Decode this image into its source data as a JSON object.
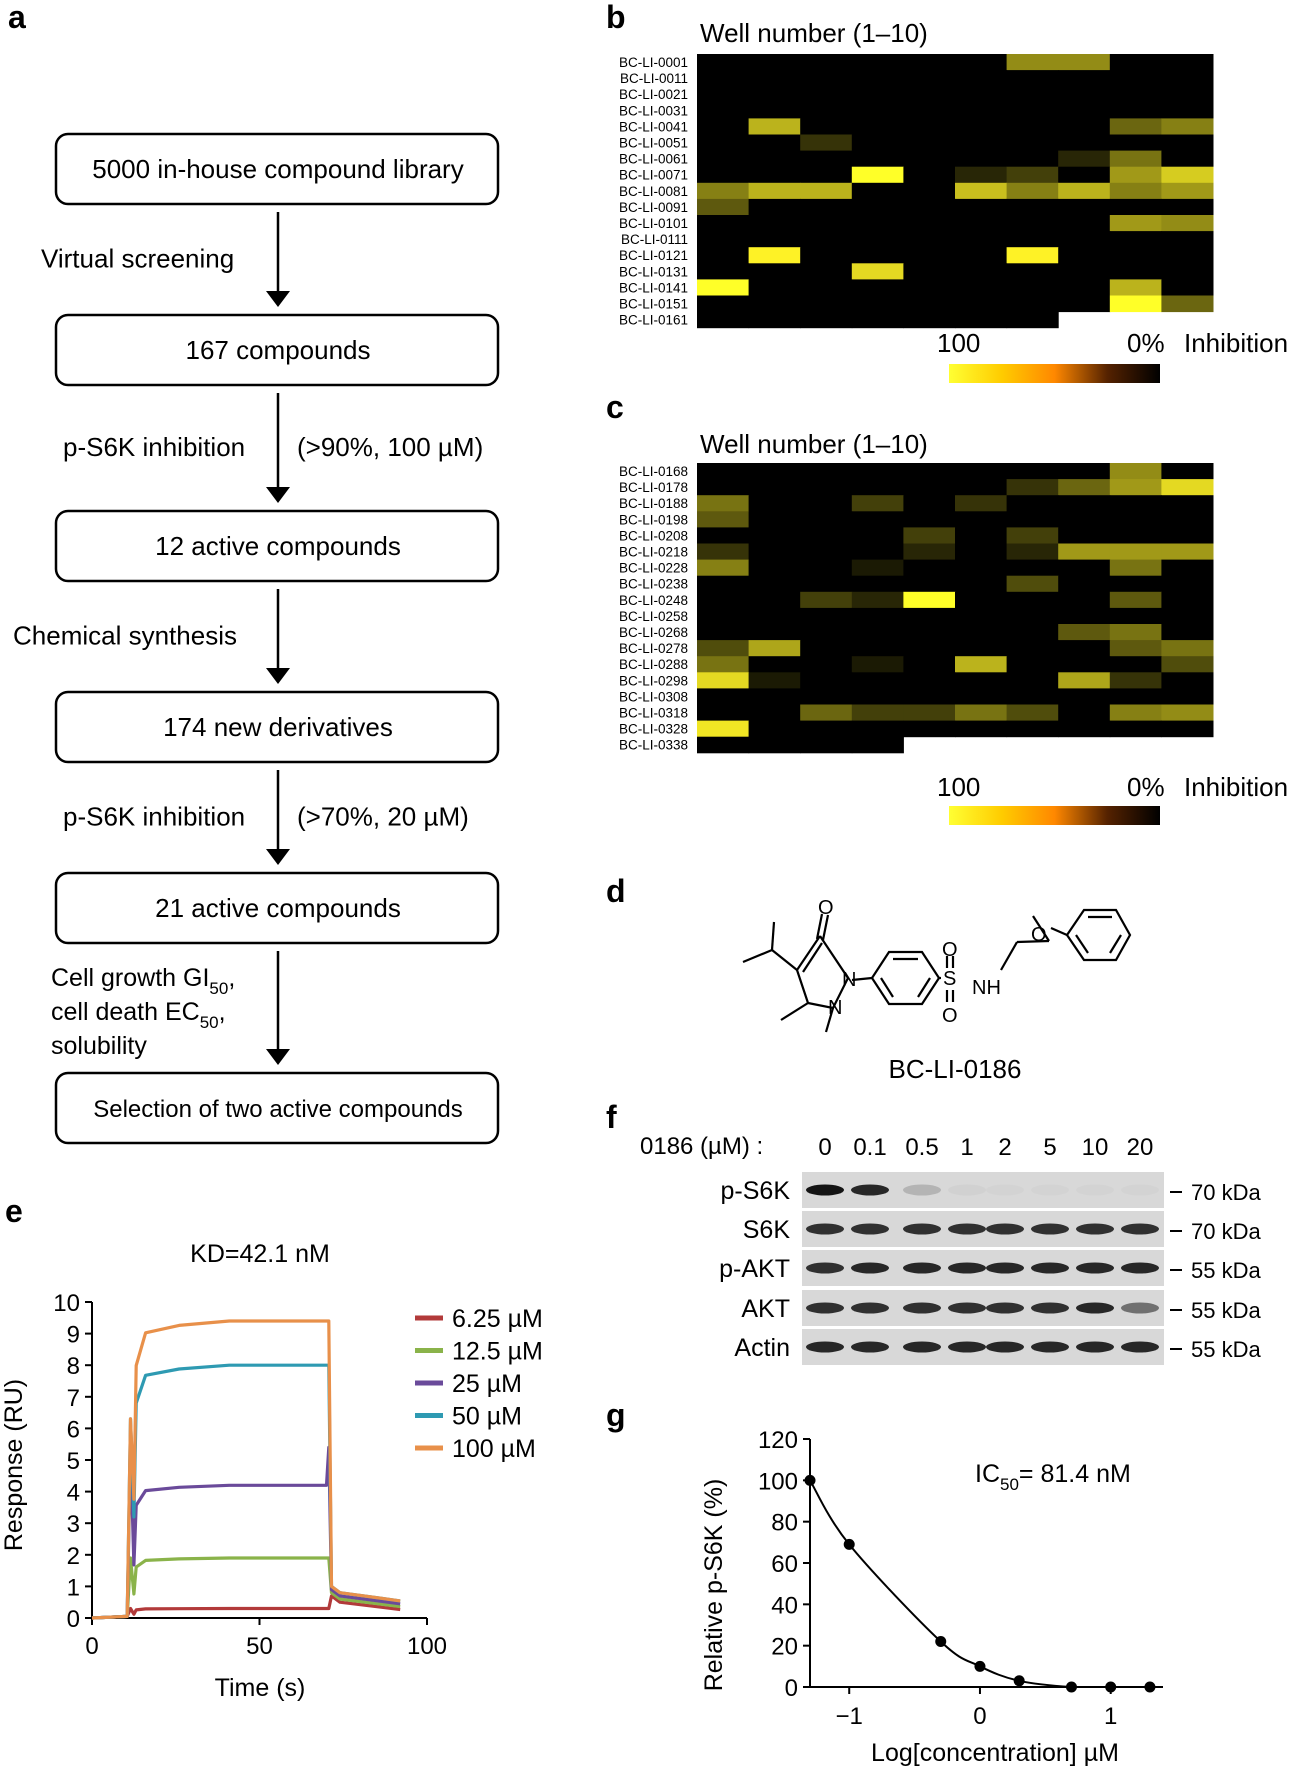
{
  "panels": {
    "a": {
      "label": "a",
      "steps": [
        "5000 in-house compound library",
        "167 compounds",
        "12 active compounds",
        "174 new derivatives",
        "21 active compounds",
        "Selection of two active compounds"
      ],
      "arrows": [
        {
          "left": "Virtual screening",
          "right": ""
        },
        {
          "left": "p-S6K inhibition",
          "right": "(>90%, 100 µM)"
        },
        {
          "left": "Chemical synthesis",
          "right": ""
        },
        {
          "left": "p-S6K inhibition",
          "right": "(>70%, 20 µM)"
        },
        {
          "left": "",
          "right": ""
        }
      ],
      "criteria": {
        "line1": "Cell growth GI",
        "line1_sub": "50",
        "line1_end": ",",
        "line2": "cell death EC",
        "line2_sub": "50",
        "line2_end": ",",
        "line3": "solubility"
      }
    },
    "b": {
      "label": "b",
      "title": "Well number (1–10)",
      "rows": [
        "BC-LI-0001",
        "BC-LI-0011",
        "BC-LI-0021",
        "BC-LI-0031",
        "BC-LI-0041",
        "BC-LI-0051",
        "BC-LI-0061",
        "BC-LI-0071",
        "BC-LI-0081",
        "BC-LI-0091",
        "BC-LI-0101",
        "BC-LI-0111",
        "BC-LI-0121",
        "BC-LI-0131",
        "BC-LI-0141",
        "BC-LI-0151",
        "BC-LI-0161"
      ],
      "matrix": [
        [
          0,
          0,
          0,
          0,
          0,
          0,
          55,
          55,
          0,
          0
        ],
        [
          0,
          0,
          0,
          0,
          0,
          0,
          0,
          0,
          0,
          0
        ],
        [
          0,
          0,
          0,
          0,
          0,
          0,
          0,
          0,
          0,
          0
        ],
        [
          0,
          0,
          0,
          0,
          0,
          0,
          0,
          0,
          0,
          0
        ],
        [
          0,
          70,
          0,
          0,
          0,
          0,
          0,
          0,
          40,
          50
        ],
        [
          0,
          0,
          20,
          0,
          0,
          0,
          0,
          0,
          0,
          0
        ],
        [
          0,
          0,
          0,
          0,
          0,
          0,
          0,
          15,
          45,
          0
        ],
        [
          0,
          0,
          0,
          100,
          0,
          15,
          25,
          0,
          60,
          80
        ],
        [
          50,
          70,
          70,
          0,
          0,
          75,
          50,
          70,
          50,
          60
        ],
        [
          35,
          0,
          0,
          0,
          0,
          0,
          0,
          0,
          0,
          0
        ],
        [
          0,
          0,
          0,
          0,
          0,
          0,
          0,
          0,
          60,
          55
        ],
        [
          0,
          0,
          0,
          0,
          0,
          0,
          0,
          0,
          0,
          0
        ],
        [
          0,
          95,
          0,
          0,
          0,
          0,
          95,
          0,
          0,
          0
        ],
        [
          0,
          0,
          0,
          85,
          0,
          0,
          0,
          0,
          0,
          0
        ],
        [
          100,
          0,
          0,
          0,
          0,
          0,
          0,
          0,
          70,
          0
        ],
        [
          0,
          0,
          0,
          0,
          0,
          0,
          0,
          0,
          100,
          40
        ],
        [
          0,
          0,
          0,
          0,
          0,
          0,
          0,
          null,
          null,
          null
        ]
      ],
      "scale_left": "100",
      "scale_right": "0%",
      "scale_label": "Inhibition"
    },
    "c": {
      "label": "c",
      "title": "Well number (1–10)",
      "rows": [
        "BC-LI-0168",
        "BC-LI-0178",
        "BC-LI-0188",
        "BC-LI-0198",
        "BC-LI-0208",
        "BC-LI-0218",
        "BC-LI-0228",
        "BC-LI-0238",
        "BC-LI-0248",
        "BC-LI-0258",
        "BC-LI-0268",
        "BC-LI-0278",
        "BC-LI-0288",
        "BC-LI-0298",
        "BC-LI-0308",
        "BC-LI-0318",
        "BC-LI-0328",
        "BC-LI-0338"
      ],
      "matrix": [
        [
          0,
          0,
          0,
          0,
          0,
          0,
          0,
          0,
          55,
          0
        ],
        [
          0,
          0,
          0,
          0,
          0,
          0,
          20,
          40,
          60,
          85
        ],
        [
          45,
          0,
          0,
          25,
          0,
          20,
          0,
          0,
          0,
          0
        ],
        [
          35,
          0,
          0,
          0,
          0,
          0,
          0,
          0,
          0,
          0
        ],
        [
          0,
          0,
          0,
          0,
          25,
          0,
          25,
          0,
          0,
          0
        ],
        [
          20,
          0,
          0,
          0,
          15,
          0,
          15,
          60,
          60,
          60
        ],
        [
          50,
          0,
          0,
          10,
          0,
          0,
          0,
          0,
          45,
          0
        ],
        [
          0,
          0,
          0,
          0,
          0,
          0,
          30,
          0,
          0,
          0
        ],
        [
          0,
          0,
          25,
          15,
          100,
          0,
          0,
          0,
          35,
          0
        ],
        [
          0,
          0,
          0,
          0,
          0,
          0,
          0,
          0,
          0,
          0
        ],
        [
          0,
          0,
          0,
          0,
          0,
          0,
          0,
          35,
          45,
          0
        ],
        [
          30,
          65,
          0,
          0,
          0,
          0,
          0,
          0,
          35,
          45
        ],
        [
          45,
          0,
          0,
          10,
          0,
          70,
          0,
          0,
          0,
          30
        ],
        [
          85,
          10,
          0,
          0,
          0,
          0,
          0,
          65,
          20,
          0
        ],
        [
          0,
          0,
          0,
          0,
          0,
          0,
          0,
          0,
          0,
          0
        ],
        [
          0,
          0,
          40,
          25,
          25,
          45,
          30,
          0,
          50,
          55
        ],
        [
          90,
          0,
          0,
          0,
          0,
          0,
          0,
          0,
          0,
          0
        ],
        [
          0,
          0,
          0,
          0,
          null,
          null,
          null,
          null,
          null,
          null
        ]
      ],
      "scale_left": "100",
      "scale_right": "0%",
      "scale_label": "Inhibition"
    },
    "d": {
      "label": "d",
      "compound": "BC-LI-0186",
      "atoms": {
        "O": "O",
        "N": "N",
        "S": "S",
        "NH": "NH"
      }
    },
    "e": {
      "label": "e",
      "title": "KD=42.1 nM",
      "xlabel": "Time (s)",
      "ylabel": "Response (RU)"
    },
    "f": {
      "label": "f",
      "dose_label": "0186 (µM) :",
      "doses": [
        "0",
        "0.1",
        "0.5",
        "1",
        "2",
        "5",
        "10",
        "20"
      ],
      "bands": [
        {
          "name": "p-S6K",
          "mw": "70 kDa",
          "intensity": [
            0.95,
            0.85,
            0.3,
            0.06,
            0.02,
            0.02,
            0.02,
            0.02
          ]
        },
        {
          "name": "S6K",
          "mw": "70 kDa",
          "intensity": [
            0.8,
            0.8,
            0.8,
            0.8,
            0.8,
            0.8,
            0.8,
            0.8
          ]
        },
        {
          "name": "p-AKT",
          "mw": "55 kDa",
          "intensity": [
            0.8,
            0.85,
            0.85,
            0.85,
            0.85,
            0.85,
            0.85,
            0.85
          ]
        },
        {
          "name": "AKT",
          "mw": "55 kDa",
          "intensity": [
            0.8,
            0.8,
            0.8,
            0.8,
            0.8,
            0.8,
            0.85,
            0.6
          ]
        },
        {
          "name": "Actin",
          "mw": "55 kDa",
          "intensity": [
            0.85,
            0.85,
            0.85,
            0.85,
            0.85,
            0.85,
            0.85,
            0.85
          ]
        }
      ]
    },
    "g": {
      "label": "g",
      "annotation": "IC",
      "annotation_sub": "50",
      "annotation_end": "= 81.4 nM",
      "xlabel": "Log[concentration] µM",
      "ylabel": "Relative p-S6K (%)"
    }
  },
  "chart_data": [
    {
      "type": "line",
      "panel": "e",
      "title": "KD=42.1 nM",
      "xlabel": "Time (s)",
      "ylabel": "Response (RU)",
      "xlim": [
        0,
        100
      ],
      "ylim": [
        0,
        10
      ],
      "xticks": [
        0,
        50,
        100
      ],
      "yticks": [
        0,
        1,
        2,
        3,
        4,
        5,
        6,
        7,
        8,
        9,
        10
      ],
      "legend_placement": "top-right",
      "series": [
        {
          "name": "6.25 µM",
          "color": "#b23a3a",
          "plateau": 0.3,
          "spike": 0.3,
          "tail": 0.3
        },
        {
          "name": "12.5 µM",
          "color": "#8ab34a",
          "plateau": 1.9,
          "spike": 1.9,
          "tail": 0.4
        },
        {
          "name": "25 µM",
          "color": "#6a4a9a",
          "plateau": 4.2,
          "spike": 5.4,
          "tail": 0.5
        },
        {
          "name": "50 µM",
          "color": "#2e9ab2",
          "plateau": 8.0,
          "spike": 6.3,
          "tail": 0.6
        },
        {
          "name": "100 µM",
          "color": "#e8904a",
          "plateau": 9.4,
          "spike": 6.3,
          "tail": 0.6
        }
      ],
      "t_on": 11,
      "t_off": 71,
      "t_end": 92
    },
    {
      "type": "scatter",
      "panel": "g",
      "xlabel": "Log[concentration] µM",
      "ylabel": "Relative p-S6K (%)",
      "xlim": [
        -1.3,
        1.4
      ],
      "ylim": [
        0,
        120
      ],
      "xticks": [
        -1,
        0,
        1
      ],
      "xtick_labels": [
        "−1",
        "0",
        "1"
      ],
      "yticks": [
        0,
        20,
        40,
        60,
        80,
        100,
        120
      ],
      "x": [
        -1.3,
        -1.0,
        -0.3,
        0.0,
        0.3,
        0.7,
        1.0,
        1.3
      ],
      "y": [
        100,
        69,
        22,
        10,
        3,
        0,
        0,
        0
      ],
      "fit": "sigmoidal",
      "ic50": "81.4 nM"
    }
  ]
}
